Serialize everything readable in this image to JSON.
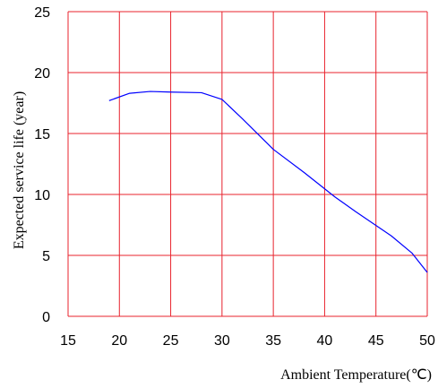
{
  "chart_data": {
    "type": "line",
    "title": "",
    "xlabel": "Ambient Temperature(℃)",
    "ylabel": "Expected service life (year)",
    "xlim": [
      15,
      50
    ],
    "ylim": [
      0,
      25
    ],
    "x_ticks": [
      "15",
      "20",
      "25",
      "30",
      "35",
      "40",
      "45",
      "50"
    ],
    "y_ticks": [
      "0",
      "5",
      "10",
      "15",
      "20",
      "25"
    ],
    "grid": true,
    "grid_color": "#e8232e",
    "line_color": "#0000ff",
    "series": [
      {
        "x": [
          19,
          21,
          23,
          25,
          28,
          30,
          32,
          35,
          38,
          41,
          43,
          46.5,
          48.5,
          50
        ],
        "y": [
          17.7,
          18.3,
          18.45,
          18.4,
          18.35,
          17.8,
          16.2,
          13.7,
          11.8,
          9.8,
          8.6,
          6.6,
          5.2,
          3.6
        ]
      }
    ]
  }
}
